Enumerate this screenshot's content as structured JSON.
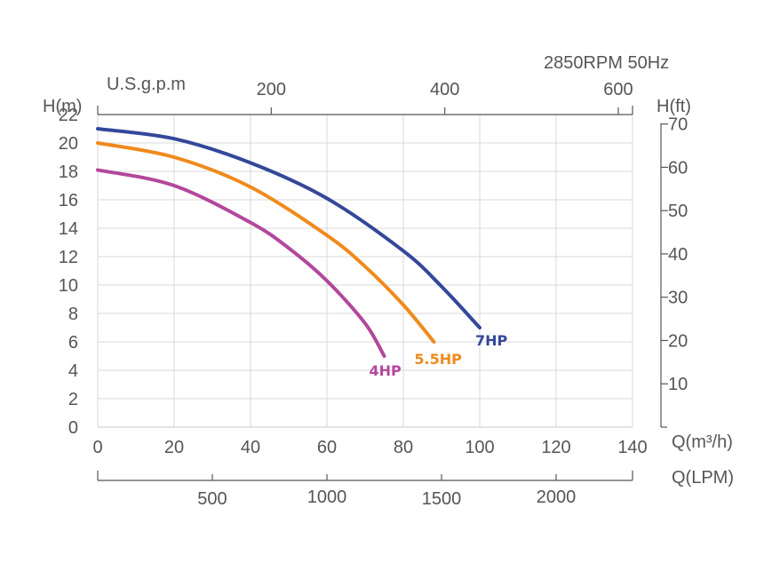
{
  "chart_data": {
    "type": "line",
    "title": "2850RPM  50Hz",
    "xlabel": "Q(m³/h)",
    "ylabel": "H(m)",
    "y2label": "H(ft)",
    "x_top_label": "U.S.g.p.m",
    "x_bottom2_label": "Q(LPM)",
    "xlim": [
      0,
      140
    ],
    "ylim": [
      0,
      22
    ],
    "x_ticks": [
      0,
      20,
      40,
      60,
      80,
      100,
      120,
      140
    ],
    "y_ticks": [
      0,
      2,
      4,
      6,
      8,
      10,
      12,
      14,
      16,
      18,
      20,
      22
    ],
    "y2_ticks": [
      10,
      20,
      30,
      40,
      50,
      60,
      70
    ],
    "top_ticks": [
      200,
      400,
      600
    ],
    "lpm_ticks": [
      500,
      1000,
      1500,
      2000
    ],
    "grid": true,
    "series": [
      {
        "name": "7HP",
        "color": "#34489a",
        "points": [
          [
            0,
            21
          ],
          [
            20,
            20.3
          ],
          [
            40,
            18.6
          ],
          [
            60,
            16.1
          ],
          [
            80,
            12.4
          ],
          [
            90,
            9.9
          ],
          [
            100,
            7
          ]
        ]
      },
      {
        "name": "5.5HP",
        "color": "#f08a1c",
        "points": [
          [
            0,
            20
          ],
          [
            20,
            19.0
          ],
          [
            40,
            16.9
          ],
          [
            60,
            13.5
          ],
          [
            70,
            11.3
          ],
          [
            80,
            8.6
          ],
          [
            88,
            6
          ]
        ]
      },
      {
        "name": "4HP",
        "color": "#b2489c",
        "points": [
          [
            0,
            18.1
          ],
          [
            20,
            17.0
          ],
          [
            40,
            14.4
          ],
          [
            50,
            12.6
          ],
          [
            60,
            10.3
          ],
          [
            70,
            7.3
          ],
          [
            75,
            5
          ]
        ]
      }
    ]
  }
}
